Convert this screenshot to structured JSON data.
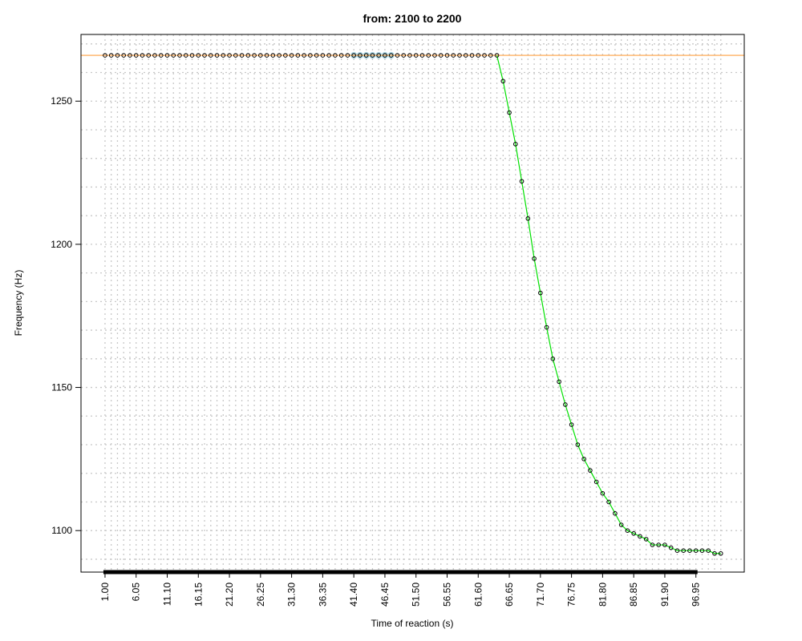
{
  "chart_data": {
    "type": "line",
    "title": "from:  2100 to 2200",
    "xlabel": "Time of reaction (s)",
    "ylabel": "Frequency (Hz)",
    "xlim": [
      -2.9,
      104.8
    ],
    "ylim": [
      1085.5,
      1273.3
    ],
    "grid": true,
    "x_tick_labels": [
      "1.00",
      "6.05",
      "11.10",
      "16.15",
      "21.20",
      "26.25",
      "31.30",
      "36.35",
      "41.40",
      "46.45",
      "51.50",
      "56.55",
      "61.60",
      "66.65",
      "71.70",
      "76.75",
      "81.80",
      "86.85",
      "91.90",
      "96.95"
    ],
    "y_ticks": [
      1100,
      1150,
      1200,
      1250
    ],
    "reference_line": {
      "y": 1266,
      "color": "#ffa040"
    },
    "highlight_x_range": [
      41.4,
      47.85
    ],
    "highlight_color": "#add8e6",
    "line_color": "#00e000",
    "rug_x_range": [
      1.0,
      96.95
    ],
    "series": [
      {
        "x": [
          1.0,
          2.01,
          3.02,
          4.03,
          5.04,
          6.05,
          7.06,
          8.07,
          9.08,
          10.09,
          11.1,
          12.11,
          13.12,
          14.13,
          15.14,
          16.15,
          17.16,
          18.17,
          19.18,
          20.19,
          21.2,
          22.21,
          23.22,
          24.23,
          25.24,
          26.25,
          27.26,
          28.27,
          29.28,
          30.29,
          31.3,
          32.31,
          33.32,
          34.33,
          35.34,
          36.35,
          37.36,
          38.37,
          39.38,
          40.39,
          41.4,
          42.41,
          43.42,
          44.43,
          45.44,
          46.45,
          47.46,
          48.47,
          49.48,
          50.49,
          51.5,
          52.51,
          53.52,
          54.53,
          55.54,
          56.55,
          57.56,
          58.57,
          59.58,
          60.59,
          61.6,
          62.61,
          63.62,
          64.63,
          65.64,
          66.65,
          67.66,
          68.67,
          69.68,
          70.69,
          71.7,
          72.71,
          73.72,
          74.73,
          75.74,
          76.75,
          77.76,
          78.77,
          79.78,
          80.79,
          81.8,
          82.81,
          83.82,
          84.83,
          85.84,
          86.85,
          87.86,
          88.87,
          89.88,
          90.89,
          91.9,
          92.91,
          93.92,
          94.93,
          95.94,
          96.95,
          97.96,
          98.97,
          99.98,
          100.99
        ],
        "y": [
          1266,
          1266,
          1266,
          1266,
          1266,
          1266,
          1266,
          1266,
          1266,
          1266,
          1266,
          1266,
          1266,
          1266,
          1266,
          1266,
          1266,
          1266,
          1266,
          1266,
          1266,
          1266,
          1266,
          1266,
          1266,
          1266,
          1266,
          1266,
          1266,
          1266,
          1266,
          1266,
          1266,
          1266,
          1266,
          1266,
          1266,
          1266,
          1266,
          1266,
          1266,
          1266,
          1266,
          1266,
          1266,
          1266,
          1266,
          1266,
          1266,
          1266,
          1266,
          1266,
          1266,
          1266,
          1266,
          1266,
          1266,
          1266,
          1266,
          1266,
          1266,
          1266,
          1266,
          1266,
          1257,
          1246,
          1235,
          1222,
          1209,
          1195,
          1183,
          1171,
          1160,
          1152,
          1144,
          1137,
          1130,
          1125,
          1121,
          1117,
          1113,
          1110,
          1106,
          1102,
          1100,
          1099,
          1098,
          1097,
          1095,
          1095,
          1095,
          1094,
          1093,
          1093,
          1093,
          1093,
          1093,
          1093,
          1092,
          1092
        ]
      }
    ]
  }
}
